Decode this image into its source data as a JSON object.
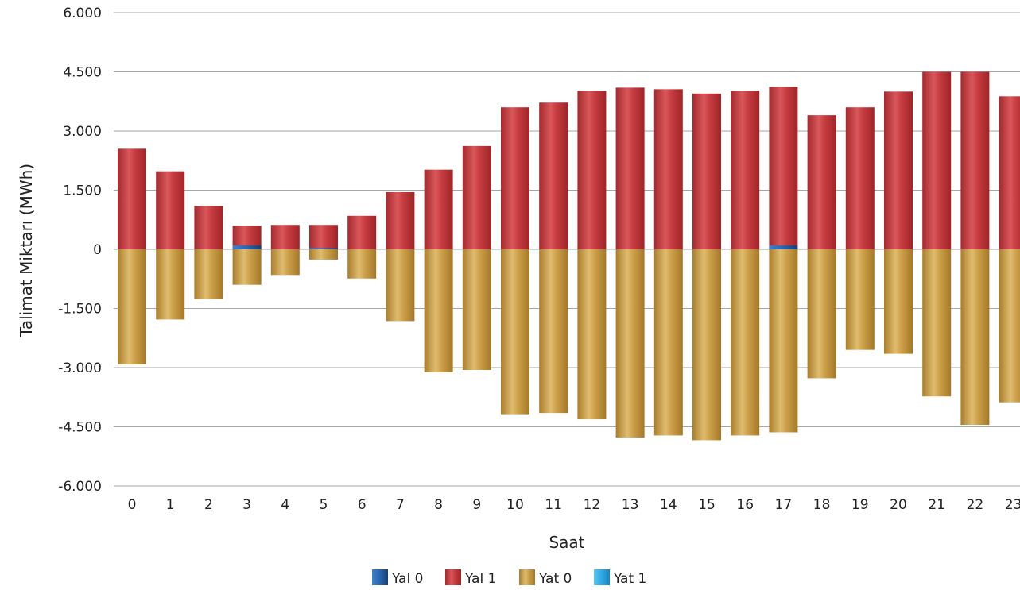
{
  "chart_data": {
    "type": "bar",
    "stacked": true,
    "title": "",
    "xlabel": "Saat",
    "ylabel": "Talimat Miktarı (MWh)",
    "ylim": [
      -6000,
      6000
    ],
    "yticks": [
      6000,
      4500,
      3000,
      1500,
      0,
      -1500,
      -3000,
      -4500,
      -6000
    ],
    "ytick_labels": [
      "6.000",
      "4.500",
      "3.000",
      "1.500",
      "0",
      "-1.500",
      "-3.000",
      "-4.500",
      "-6.000"
    ],
    "grid": true,
    "legend_position": "bottom",
    "categories": [
      "0",
      "1",
      "2",
      "3",
      "4",
      "5",
      "6",
      "7",
      "8",
      "9",
      "10",
      "11",
      "12",
      "13",
      "14",
      "15",
      "16",
      "17",
      "18",
      "19",
      "20",
      "21",
      "22",
      "23"
    ],
    "series": [
      {
        "name": "Yal 0",
        "color": "#1f5fa8",
        "values": [
          0,
          0,
          0,
          100,
          0,
          30,
          0,
          0,
          0,
          0,
          0,
          0,
          0,
          0,
          0,
          0,
          0,
          100,
          0,
          0,
          0,
          0,
          0,
          0
        ]
      },
      {
        "name": "Yal 1",
        "color": "#c0363a",
        "values": [
          2550,
          1980,
          1100,
          600,
          620,
          620,
          850,
          1450,
          2020,
          2620,
          3600,
          3720,
          4020,
          4100,
          4060,
          3950,
          4020,
          4120,
          3400,
          3600,
          4000,
          4500,
          4500,
          3880
        ]
      },
      {
        "name": "Yat 0",
        "color": "#c89a3e",
        "values": [
          -2920,
          -1780,
          -1260,
          -900,
          -650,
          -260,
          -740,
          -1820,
          -3120,
          -3060,
          -4180,
          -4150,
          -4310,
          -4770,
          -4720,
          -4840,
          -4720,
          -4640,
          -3270,
          -2550,
          -2650,
          -3730,
          -4450,
          -3880
        ]
      },
      {
        "name": "Yat 1",
        "color": "#29a8e0",
        "values": [
          0,
          0,
          0,
          0,
          0,
          0,
          0,
          0,
          0,
          0,
          0,
          0,
          0,
          0,
          0,
          0,
          0,
          0,
          0,
          0,
          0,
          0,
          0,
          0
        ]
      }
    ]
  }
}
